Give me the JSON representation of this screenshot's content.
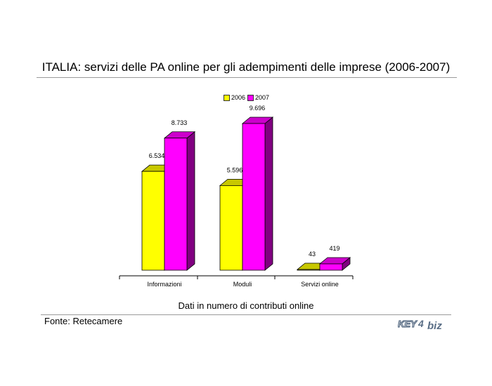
{
  "header": {
    "title": "ITALIA: servizi delle PA online per gli adempimenti delle imprese (2006-2007)"
  },
  "footer": {
    "subtitle": "Dati in numero di contributi online",
    "source": "Fonte: Retecamere",
    "logo_text": "KEY4biz"
  },
  "colors": {
    "s2006_front": "#ffff00",
    "s2006_top": "#c8c800",
    "s2006_side": "#999900",
    "s2007_front": "#ff00ff",
    "s2007_top": "#cc00cc",
    "s2007_side": "#800080"
  },
  "chart_data": {
    "type": "bar",
    "categories": [
      "Informazioni",
      "Moduli",
      "Servizi online"
    ],
    "series": [
      {
        "name": "2006",
        "values": [
          6534,
          5596,
          43
        ],
        "labels": [
          "6.534",
          "5.596",
          "43"
        ]
      },
      {
        "name": "2007",
        "values": [
          8733,
          9696,
          419
        ],
        "labels": [
          "8.733",
          "9.696",
          "419"
        ]
      }
    ],
    "title": "",
    "xlabel": "",
    "ylabel": "",
    "ylim": [
      0,
      9696
    ],
    "legend_position": "top",
    "grid": false,
    "three_d": true
  }
}
